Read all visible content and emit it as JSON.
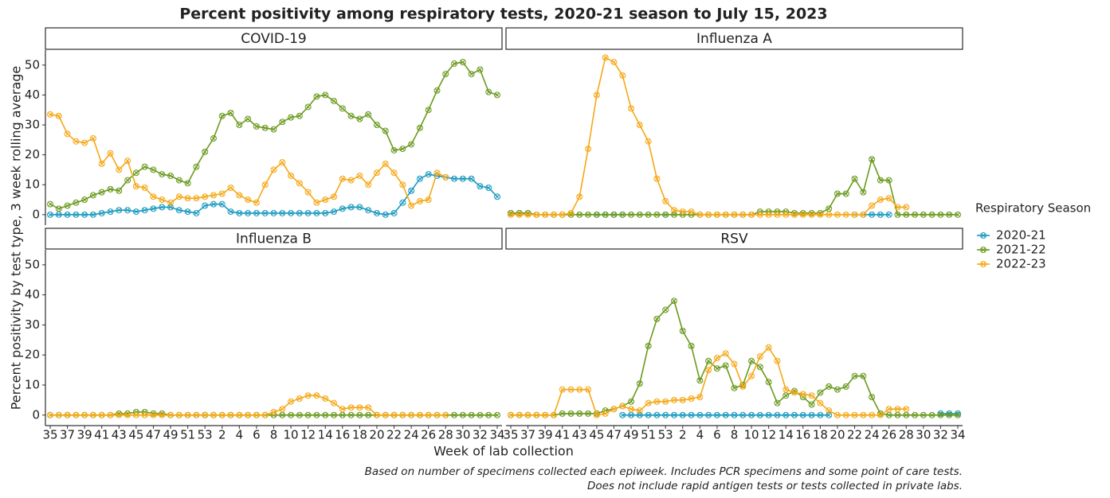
{
  "chart_data": {
    "type": "line",
    "title": "Percent positivity among respiratory tests, 2020-21 season to July 15, 2023",
    "x_label": "Week of lab collection",
    "y_label": "Percent positivity by test type, 3 week rolling average",
    "note": [
      "Based on number of specimens collected each epiweek. Includes PCR specimens and some point of care tests.",
      "Does not include rapid antigen tests or tests collected in private labs."
    ],
    "legend_title": "Respiratory Season",
    "series": [
      {
        "name": "2020-21",
        "color": "#1b9ac0"
      },
      {
        "name": "2021-22",
        "color": "#6a9a1f"
      },
      {
        "name": "2022-23",
        "color": "#f5a816"
      }
    ],
    "categories": [
      35,
      null,
      37,
      null,
      39,
      null,
      41,
      null,
      43,
      null,
      45,
      null,
      47,
      null,
      49,
      null,
      51,
      null,
      53,
      null,
      2,
      null,
      4,
      null,
      6,
      null,
      8,
      null,
      10,
      null,
      12,
      null,
      14,
      null,
      16,
      null,
      18,
      null,
      20,
      null,
      22,
      null,
      24,
      null,
      26,
      null,
      28,
      null,
      30,
      null,
      32,
      null,
      34
    ],
    "ylim": [
      -3.5,
      55
    ],
    "yticks": [
      0,
      10,
      20,
      30,
      40,
      50
    ],
    "facets": [
      {
        "title": "COVID-19",
        "values": [
          [
            0,
            0,
            0,
            0,
            0,
            0,
            0.5,
            1,
            1.5,
            1.5,
            1,
            1.5,
            2,
            2.5,
            2.5,
            1.5,
            1,
            0.5,
            3,
            3.5,
            3.5,
            1,
            0.5,
            0.5,
            0.5,
            0.5,
            0.5,
            0.5,
            0.5,
            0.5,
            0.5,
            0.5,
            0.5,
            1,
            2,
            2.5,
            2.5,
            1.5,
            0.5,
            0,
            0.5,
            4,
            8,
            12,
            13.5,
            13,
            12.5,
            12,
            12,
            12,
            9.5,
            9,
            6
          ],
          [
            3.5,
            2,
            3,
            4,
            5,
            6.5,
            7.5,
            8.5,
            8,
            11.5,
            14,
            16,
            15,
            13.5,
            13,
            11.5,
            10.5,
            16,
            21,
            25.5,
            33,
            34,
            30,
            32,
            29.5,
            29,
            28.5,
            31,
            32.5,
            33,
            36,
            39.5,
            40,
            38,
            35.5,
            33,
            32,
            33.5,
            30,
            28,
            21.5,
            22,
            23.5,
            29,
            35,
            41.5,
            47,
            50.5,
            51,
            47,
            48.5,
            41,
            40
          ],
          [
            33.5,
            33,
            27,
            24.5,
            24,
            25.5,
            17,
            20.5,
            15,
            18,
            9.5,
            9,
            6,
            5,
            4,
            6,
            5.5,
            5.5,
            6,
            6.5,
            7,
            9,
            6.5,
            5,
            4,
            10,
            15,
            17.5,
            13,
            10.5,
            7.5,
            4,
            5,
            6,
            12,
            11.5,
            13,
            10,
            14,
            17,
            14,
            10,
            3,
            4.5,
            5,
            14,
            12.5,
            null,
            null,
            null,
            null,
            null,
            null
          ]
        ]
      },
      {
        "title": "Influenza A",
        "values": [
          [
            0.5,
            0.5,
            0.5,
            null,
            null,
            null,
            null,
            null,
            null,
            null,
            0,
            0,
            0,
            0,
            null,
            null,
            null,
            null,
            0,
            null,
            null,
            null,
            null,
            null,
            null,
            null,
            null,
            null,
            null,
            null,
            null,
            null,
            null,
            null,
            null,
            null,
            null,
            null,
            null,
            null,
            0,
            0,
            0,
            0,
            0,
            null,
            null,
            null,
            null,
            null,
            null,
            null,
            null
          ],
          [
            0.5,
            0.5,
            0.5,
            0,
            0,
            0,
            0,
            0,
            0,
            0,
            0,
            0,
            0,
            0,
            0,
            0,
            0,
            0,
            0,
            0,
            0,
            0,
            0,
            0,
            0,
            0,
            0,
            0,
            0,
            1,
            1,
            1,
            1,
            0.5,
            0.5,
            0.5,
            0.5,
            2,
            7,
            7,
            12,
            7.5,
            18.5,
            11.5,
            11.5,
            0,
            0,
            0,
            0,
            0,
            0,
            0,
            0
          ],
          [
            0,
            0,
            0,
            0,
            0,
            0,
            0,
            0.5,
            6,
            22,
            40,
            52.5,
            51,
            46.5,
            35.5,
            30,
            24.5,
            12,
            4.5,
            1.5,
            1,
            1,
            0,
            0,
            0,
            0,
            0,
            0,
            0,
            0,
            0,
            0,
            0,
            0,
            0,
            0,
            0,
            0,
            0,
            0,
            0,
            0,
            3,
            5,
            5.5,
            2.5,
            2.5,
            null,
            null,
            null,
            null,
            null,
            null
          ]
        ]
      },
      {
        "title": "Influenza B",
        "values": [
          [
            null,
            null,
            null,
            null,
            null,
            null,
            null,
            null,
            null,
            null,
            null,
            null,
            null,
            null,
            null,
            null,
            null,
            null,
            0,
            null,
            null,
            null,
            null,
            null,
            null,
            null,
            null,
            null,
            null,
            null,
            null,
            null,
            null,
            null,
            null,
            null,
            null,
            null,
            null,
            null,
            null,
            null,
            null,
            null,
            null,
            null,
            null,
            null,
            null,
            null,
            null,
            null,
            null
          ],
          [
            0,
            0,
            0,
            0,
            0,
            0,
            0,
            0,
            0.5,
            0.5,
            1,
            1,
            0.5,
            0.5,
            0,
            0,
            0,
            0,
            0,
            0,
            0,
            0,
            0,
            0,
            0,
            0,
            0,
            0,
            0,
            0,
            0,
            0,
            0,
            0,
            0,
            0,
            0,
            0,
            0,
            0,
            0,
            0,
            0,
            0,
            0,
            0,
            0,
            0,
            0,
            0,
            0,
            0,
            0
          ],
          [
            0,
            0,
            0,
            0,
            0,
            0,
            0,
            0,
            0,
            0,
            0,
            0,
            0,
            0,
            0,
            0,
            0,
            0,
            0,
            0,
            0,
            0,
            0,
            0,
            0,
            0,
            1,
            2,
            4.5,
            5.5,
            6.5,
            6.5,
            5.5,
            4,
            2,
            2.5,
            2.5,
            2.5,
            0,
            0,
            0,
            0,
            0,
            0,
            0,
            0,
            0,
            null,
            null,
            null,
            null,
            null,
            null
          ]
        ]
      },
      {
        "title": "RSV",
        "values": [
          [
            null,
            null,
            null,
            null,
            null,
            null,
            null,
            null,
            null,
            null,
            null,
            null,
            null,
            0,
            0,
            0,
            0,
            0,
            0,
            0,
            0,
            0,
            0,
            0,
            0,
            0,
            0,
            0,
            0,
            0,
            0,
            0,
            0,
            0,
            0,
            0,
            0,
            0,
            null,
            null,
            null,
            null,
            null,
            null,
            null,
            null,
            null,
            null,
            null,
            null,
            0.5,
            0.5,
            0.5
          ],
          [
            0,
            0,
            0,
            0,
            0,
            0,
            0.5,
            0.5,
            0.5,
            0.5,
            0.5,
            1.5,
            2,
            3,
            4.5,
            10.5,
            23,
            32,
            35,
            38,
            28,
            23,
            11.5,
            18,
            15.5,
            16.5,
            9,
            10,
            18,
            16,
            11,
            4,
            6.5,
            8,
            6,
            3.5,
            7.5,
            9.5,
            8.5,
            9.5,
            13,
            13,
            6,
            0.5,
            0,
            0,
            0,
            0,
            0,
            0,
            0,
            0,
            0
          ],
          [
            0,
            0,
            0,
            0,
            0,
            0,
            8.5,
            8.5,
            8.5,
            8.5,
            0,
            0.5,
            2,
            3,
            2,
            1.5,
            4,
            4.5,
            4.5,
            5,
            5,
            5.5,
            6,
            15,
            19,
            20.5,
            17,
            9.5,
            13,
            19.5,
            22.5,
            18,
            8.5,
            7.5,
            7,
            6.5,
            4,
            1.5,
            0,
            0,
            0,
            0,
            0,
            0,
            2,
            2,
            2,
            null,
            null,
            null,
            null,
            null,
            null
          ]
        ]
      }
    ]
  }
}
